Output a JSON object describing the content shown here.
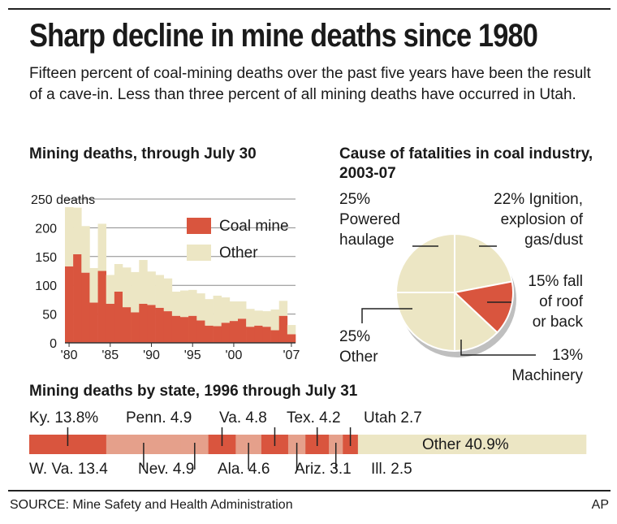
{
  "header": {
    "title": "Sharp decline in mine deaths since 1980",
    "subtitle": "Fifteen percent of coal-mining deaths over the past five years have been the result of a cave-in. Less than three percent of all mining deaths have occurred in Utah."
  },
  "colors": {
    "coal": "#d9553e",
    "other": "#ece6c4",
    "state_light": "#e5a08b",
    "state_mid": "#e0735c"
  },
  "chart_data": [
    {
      "type": "bar",
      "title": "Mining deaths, through July 30",
      "stacked": true,
      "categories": [
        "1980",
        "1981",
        "1982",
        "1983",
        "1984",
        "1985",
        "1986",
        "1987",
        "1988",
        "1989",
        "1990",
        "1991",
        "1992",
        "1993",
        "1994",
        "1995",
        "1996",
        "1997",
        "1998",
        "1999",
        "2000",
        "2001",
        "2002",
        "2003",
        "2004",
        "2005",
        "2006",
        "2007"
      ],
      "series": [
        {
          "name": "Coal mine",
          "values": [
            133,
            154,
            122,
            70,
            125,
            68,
            89,
            62,
            53,
            68,
            66,
            61,
            55,
            47,
            45,
            47,
            39,
            30,
            29,
            35,
            38,
            42,
            28,
            30,
            28,
            22,
            47,
            15
          ]
        },
        {
          "name": "Other",
          "values": [
            103,
            81,
            81,
            60,
            82,
            50,
            48,
            69,
            70,
            76,
            58,
            57,
            57,
            42,
            46,
            45,
            47,
            46,
            53,
            44,
            34,
            30,
            31,
            26,
            27,
            36,
            26,
            16
          ]
        }
      ],
      "ylim": [
        0,
        250
      ],
      "y_ticks": [
        0,
        50,
        100,
        150,
        200,
        250
      ],
      "y_unit_label": "250 deaths",
      "x_tick_labels": [
        "'80",
        "'85",
        "'90",
        "'95",
        "'00",
        "'07"
      ],
      "legend": [
        "Coal mine",
        "Other"
      ]
    },
    {
      "type": "pie",
      "title": "Cause of fatalities in coal industry, 2003-07",
      "slices": [
        {
          "label": "22% Ignition, explosion of gas/dust",
          "value": 22
        },
        {
          "label": "15% fall of roof or back",
          "value": 15
        },
        {
          "label": "13% Machinery",
          "value": 13
        },
        {
          "label": "25% Other",
          "value": 25
        },
        {
          "label": "25% Powered haulage",
          "value": 25
        }
      ]
    },
    {
      "type": "bar",
      "title": "Mining deaths by state, 1996 through July 31",
      "stacked_horizontal": true,
      "segments": [
        {
          "state": "Ky.",
          "value": 13.8,
          "label": "Ky. 13.8%"
        },
        {
          "state": "W. Va.",
          "value": 13.4,
          "label": "W. Va. 13.4"
        },
        {
          "state": "Nev.",
          "value": 4.9,
          "label": "Nev. 4.9"
        },
        {
          "state": "Penn.",
          "value": 4.9,
          "label": "Penn. 4.9"
        },
        {
          "state": "Ala.",
          "value": 4.6,
          "label": "Ala. 4.6"
        },
        {
          "state": "Va.",
          "value": 4.8,
          "label": "Va. 4.8"
        },
        {
          "state": "Ariz.",
          "value": 3.1,
          "label": "Ariz. 3.1"
        },
        {
          "state": "Tex.",
          "value": 4.2,
          "label": "Tex. 4.2"
        },
        {
          "state": "Ill.",
          "value": 2.5,
          "label": "Ill. 2.5"
        },
        {
          "state": "Utah",
          "value": 2.7,
          "label": "Utah 2.7"
        },
        {
          "state": "Other",
          "value": 40.9,
          "label": "Other 40.9%"
        }
      ]
    }
  ],
  "footer": {
    "source": "SOURCE: Mine Safety and Health Administration",
    "credit": "AP"
  }
}
